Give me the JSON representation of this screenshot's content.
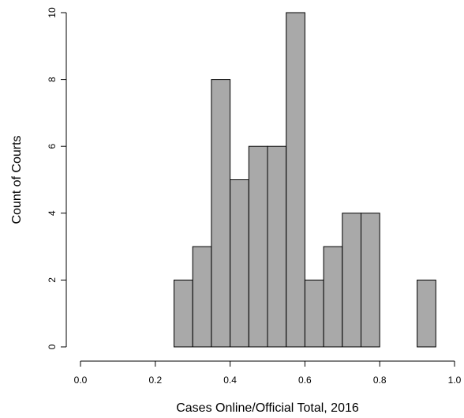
{
  "chart_data": {
    "type": "bar",
    "histogram": true,
    "title": "",
    "xlabel": "Cases Online/Official Total, 2016",
    "ylabel": "Count of Courts",
    "bins": [
      {
        "x0": 0.25,
        "x1": 0.3,
        "count": 2
      },
      {
        "x0": 0.3,
        "x1": 0.35,
        "count": 3
      },
      {
        "x0": 0.35,
        "x1": 0.4,
        "count": 8
      },
      {
        "x0": 0.4,
        "x1": 0.45,
        "count": 5
      },
      {
        "x0": 0.45,
        "x1": 0.5,
        "count": 6
      },
      {
        "x0": 0.5,
        "x1": 0.55,
        "count": 6
      },
      {
        "x0": 0.55,
        "x1": 0.6,
        "count": 10
      },
      {
        "x0": 0.6,
        "x1": 0.65,
        "count": 2
      },
      {
        "x0": 0.65,
        "x1": 0.7,
        "count": 3
      },
      {
        "x0": 0.7,
        "x1": 0.75,
        "count": 4
      },
      {
        "x0": 0.75,
        "x1": 0.8,
        "count": 4
      },
      {
        "x0": 0.8,
        "x1": 0.85,
        "count": 0
      },
      {
        "x0": 0.85,
        "x1": 0.9,
        "count": 0
      },
      {
        "x0": 0.9,
        "x1": 0.95,
        "count": 2
      }
    ],
    "xlim": [
      0.0,
      1.0
    ],
    "ylim": [
      0,
      10
    ],
    "x_ticks": [
      "0.0",
      "0.2",
      "0.4",
      "0.6",
      "0.8",
      "1.0"
    ],
    "y_ticks": [
      "0",
      "2",
      "4",
      "6",
      "8",
      "10"
    ],
    "grid": false,
    "legend": "none",
    "colors": {
      "bar_fill": "#a9a9a9",
      "bar_stroke": "#000000",
      "axis": "#000000"
    }
  }
}
